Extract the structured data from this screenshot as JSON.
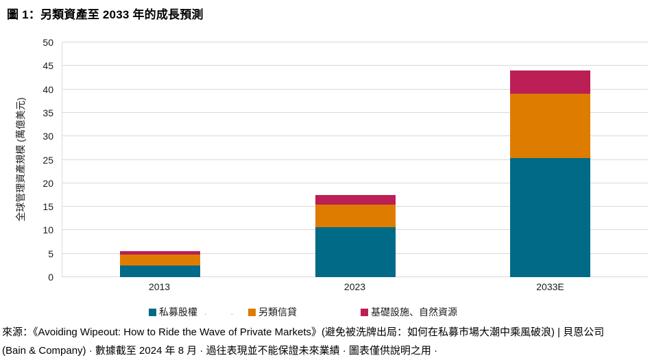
{
  "header": {
    "title": "圖 1：另類資產至 2033 年的成長預測"
  },
  "chart_data": {
    "type": "bar",
    "stacked": true,
    "title": "圖 1：另類資產至 2033 年的成長預測",
    "categories": [
      "2013",
      "2023",
      "2033E"
    ],
    "series": [
      {
        "name": "私募股權",
        "color": "#006A87",
        "values": [
          2.5,
          10.7,
          25.3
        ]
      },
      {
        "name": "另類信貸",
        "color": "#DE7C00",
        "values": [
          2.3,
          4.7,
          13.7
        ]
      },
      {
        "name": "基礎設施、自然資源",
        "color": "#BB1F55",
        "values": [
          0.7,
          2.1,
          5.0
        ]
      }
    ],
    "xlabel": "",
    "ylabel": "全球管理資產規模 (萬億美元)",
    "ylim": [
      0,
      50
    ],
    "ytick_step": 5,
    "grid": "horizontal",
    "gridline_color": "#D9D9D9",
    "legend_position": "bottom"
  },
  "legend": {
    "suffix_dots": ". ."
  },
  "footnote": {
    "line1": "來源：《Avoiding Wipeout: How to Ride the Wave of Private Markets》(避免被洗牌出局：如何在私募市場大潮中乘風破浪) | 貝恩公司",
    "line2": "(Bain & Company) · 數據截至 2024 年 8 月 · 過往表現並不能保證未來業績 · 圖表僅供說明之用 ·"
  }
}
